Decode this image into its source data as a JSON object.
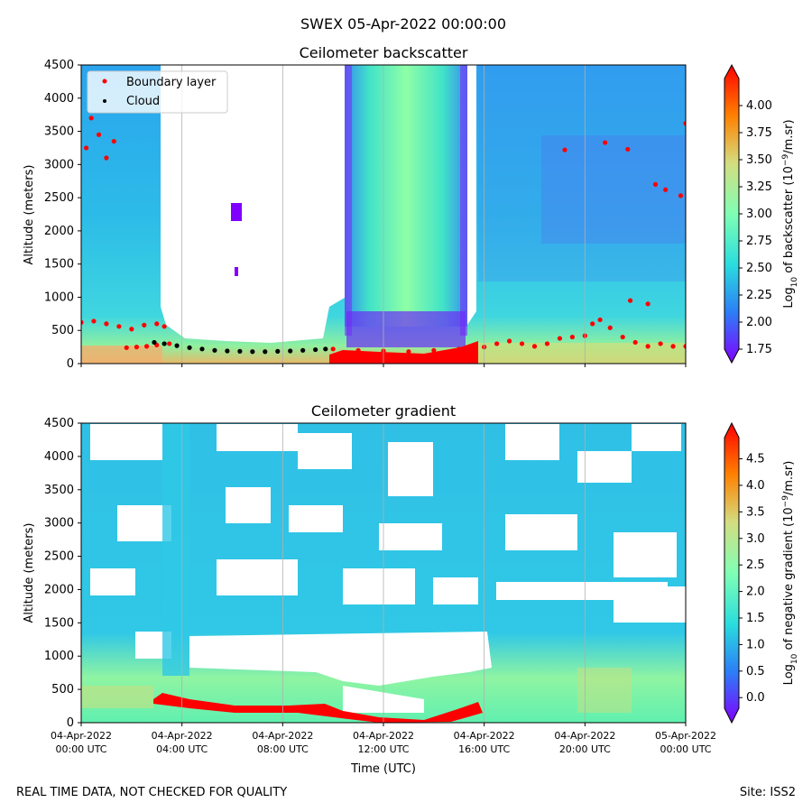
{
  "suptitle": "SWEX 05-Apr-2022 00:00:00",
  "footer": {
    "left": "REAL TIME DATA, NOT CHECKED FOR QUALITY",
    "right": "Site: ISS2"
  },
  "colors": {
    "boundary_layer": "#ff0000",
    "cloud": "#000000",
    "colormap": [
      "#8000ff",
      "#2c7ef7",
      "#2adddd",
      "#80ffb4",
      "#d4dd80",
      "#ff8000",
      "#ff0000"
    ]
  },
  "chart_data": [
    {
      "type": "heatmap",
      "title": "Ceilometer backscatter",
      "xlabel": "",
      "ylabel": "Altitude (meters)",
      "ylim": [
        0,
        4500
      ],
      "yticks": [
        "0",
        "500",
        "1000",
        "1500",
        "2000",
        "2500",
        "3000",
        "3500",
        "4000",
        "4500"
      ],
      "xticks_hours": [
        0,
        4,
        8,
        12,
        16,
        20,
        24
      ],
      "colorbar": {
        "label_prefix": "Log",
        "label_sub": "10",
        "label_mid": " of backscatter (10",
        "label_sup": "−9",
        "label_suffix": "/m.sr)",
        "range": [
          1.75,
          4.25
        ],
        "ticks": [
          "1.75",
          "2.00",
          "2.25",
          "2.50",
          "2.75",
          "3.00",
          "3.25",
          "3.50",
          "3.75",
          "4.00"
        ]
      },
      "legend": {
        "placement": "upper-left",
        "entries": [
          {
            "label": "Boundary layer",
            "color": "#ff0000"
          },
          {
            "label": "Cloud",
            "color": "#000000"
          }
        ]
      },
      "boundary_layer": [
        {
          "t": 0.0,
          "alt": 620
        },
        {
          "t": 0.5,
          "alt": 640
        },
        {
          "t": 1.0,
          "alt": 600
        },
        {
          "t": 1.5,
          "alt": 560
        },
        {
          "t": 2.0,
          "alt": 520
        },
        {
          "t": 2.5,
          "alt": 580
        },
        {
          "t": 3.0,
          "alt": 600
        },
        {
          "t": 3.3,
          "alt": 560
        },
        {
          "t": 1.8,
          "alt": 240
        },
        {
          "t": 2.2,
          "alt": 250
        },
        {
          "t": 2.6,
          "alt": 260
        },
        {
          "t": 3.0,
          "alt": 280
        },
        {
          "t": 3.5,
          "alt": 300
        },
        {
          "t": 10.0,
          "alt": 220
        },
        {
          "t": 11.0,
          "alt": 200
        },
        {
          "t": 12.0,
          "alt": 190
        },
        {
          "t": 13.0,
          "alt": 180
        },
        {
          "t": 14.0,
          "alt": 200
        },
        {
          "t": 15.0,
          "alt": 220
        },
        {
          "t": 15.5,
          "alt": 240
        },
        {
          "t": 16.0,
          "alt": 250
        },
        {
          "t": 16.5,
          "alt": 300
        },
        {
          "t": 17.0,
          "alt": 340
        },
        {
          "t": 17.5,
          "alt": 300
        },
        {
          "t": 18.0,
          "alt": 260
        },
        {
          "t": 18.5,
          "alt": 300
        },
        {
          "t": 19.0,
          "alt": 380
        },
        {
          "t": 19.5,
          "alt": 400
        },
        {
          "t": 20.0,
          "alt": 420
        },
        {
          "t": 20.3,
          "alt": 600
        },
        {
          "t": 20.6,
          "alt": 660
        },
        {
          "t": 21.0,
          "alt": 540
        },
        {
          "t": 21.5,
          "alt": 400
        },
        {
          "t": 22.0,
          "alt": 320
        },
        {
          "t": 22.5,
          "alt": 260
        },
        {
          "t": 23.0,
          "alt": 300
        },
        {
          "t": 23.5,
          "alt": 260
        },
        {
          "t": 24.0,
          "alt": 260
        },
        {
          "t": 0.2,
          "alt": 3250
        },
        {
          "t": 0.4,
          "alt": 3700
        },
        {
          "t": 0.7,
          "alt": 3450
        },
        {
          "t": 1.0,
          "alt": 3100
        },
        {
          "t": 1.3,
          "alt": 3350
        },
        {
          "t": 19.2,
          "alt": 3220
        },
        {
          "t": 20.8,
          "alt": 3330
        },
        {
          "t": 21.7,
          "alt": 3230
        },
        {
          "t": 22.8,
          "alt": 2700
        },
        {
          "t": 23.2,
          "alt": 2620
        },
        {
          "t": 23.8,
          "alt": 2530
        },
        {
          "t": 21.8,
          "alt": 950
        },
        {
          "t": 22.5,
          "alt": 900
        },
        {
          "t": 24.0,
          "alt": 3620
        }
      ],
      "cloud": [
        {
          "t": 2.9,
          "alt": 320
        },
        {
          "t": 3.3,
          "alt": 300
        },
        {
          "t": 3.8,
          "alt": 270
        },
        {
          "t": 4.3,
          "alt": 240
        },
        {
          "t": 4.8,
          "alt": 220
        },
        {
          "t": 5.3,
          "alt": 200
        },
        {
          "t": 5.8,
          "alt": 190
        },
        {
          "t": 6.3,
          "alt": 185
        },
        {
          "t": 6.8,
          "alt": 180
        },
        {
          "t": 7.3,
          "alt": 180
        },
        {
          "t": 7.8,
          "alt": 185
        },
        {
          "t": 8.3,
          "alt": 190
        },
        {
          "t": 8.8,
          "alt": 200
        },
        {
          "t": 9.3,
          "alt": 210
        },
        {
          "t": 9.7,
          "alt": 220
        }
      ]
    },
    {
      "type": "heatmap",
      "title": "Ceilometer gradient",
      "xlabel": "Time (UTC)",
      "ylabel": "Altitude (meters)",
      "ylim": [
        0,
        4500
      ],
      "yticks": [
        "0",
        "500",
        "1000",
        "1500",
        "2000",
        "2500",
        "3000",
        "3500",
        "4000",
        "4500"
      ],
      "xticks_hours": [
        0,
        4,
        8,
        12,
        16,
        20,
        24
      ],
      "xtick_labels": [
        {
          "date": "04-Apr-2022",
          "time": "00:00 UTC"
        },
        {
          "date": "04-Apr-2022",
          "time": "04:00 UTC"
        },
        {
          "date": "04-Apr-2022",
          "time": "08:00 UTC"
        },
        {
          "date": "04-Apr-2022",
          "time": "12:00 UTC"
        },
        {
          "date": "04-Apr-2022",
          "time": "16:00 UTC"
        },
        {
          "date": "04-Apr-2022",
          "time": "20:00 UTC"
        },
        {
          "date": "05-Apr-2022",
          "time": "00:00 UTC"
        }
      ],
      "colorbar": {
        "label_prefix": "Log",
        "label_sub": "10",
        "label_mid": " of negative gradient (10",
        "label_sup": "−9",
        "label_suffix": "/m.sr)",
        "range": [
          -0.2,
          4.9
        ],
        "ticks": [
          "0.0",
          "0.5",
          "1.0",
          "1.5",
          "2.0",
          "2.5",
          "3.0",
          "3.5",
          "4.0",
          "4.5"
        ]
      }
    }
  ]
}
